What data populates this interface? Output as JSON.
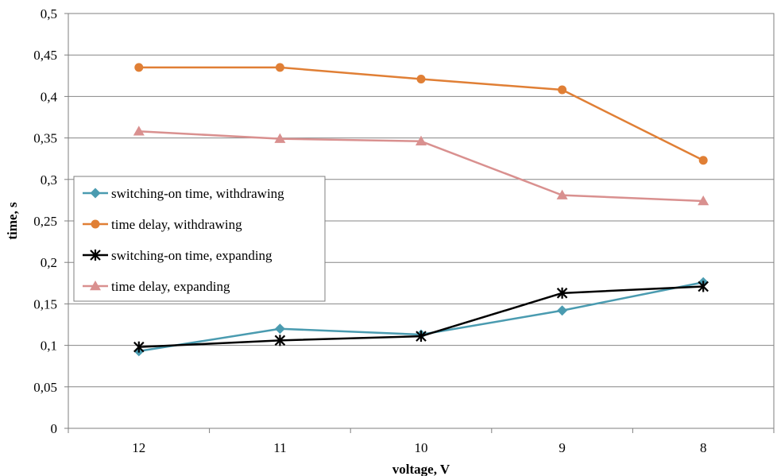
{
  "chart_data": {
    "type": "line",
    "categories": [
      "12",
      "11",
      "10",
      "9",
      "8"
    ],
    "xlabel": "voltage, V",
    "ylabel": "time, s",
    "ylim": [
      0,
      0.5
    ],
    "yticks": [
      "0",
      "0,05",
      "0,1",
      "0,15",
      "0,2",
      "0,25",
      "0,3",
      "0,35",
      "0,4",
      "0,45",
      "0,5"
    ],
    "grid": true,
    "legend_position": "left-middle",
    "series": [
      {
        "name": "switching-on time, withdrawing",
        "color": "#4a9bb0",
        "marker": "diamond",
        "values": [
          0.093,
          0.12,
          0.113,
          0.142,
          0.176
        ]
      },
      {
        "name": "time delay, withdrawing",
        "color": "#e07f35",
        "marker": "circle",
        "values": [
          0.435,
          0.435,
          0.421,
          0.408,
          0.323
        ]
      },
      {
        "name": "switching-on time, expanding",
        "color": "#000000",
        "marker": "asterisk",
        "values": [
          0.098,
          0.106,
          0.111,
          0.163,
          0.171
        ]
      },
      {
        "name": "time delay, expanding",
        "color": "#d9908f",
        "marker": "triangle",
        "values": [
          0.358,
          0.349,
          0.346,
          0.281,
          0.274
        ]
      }
    ]
  }
}
